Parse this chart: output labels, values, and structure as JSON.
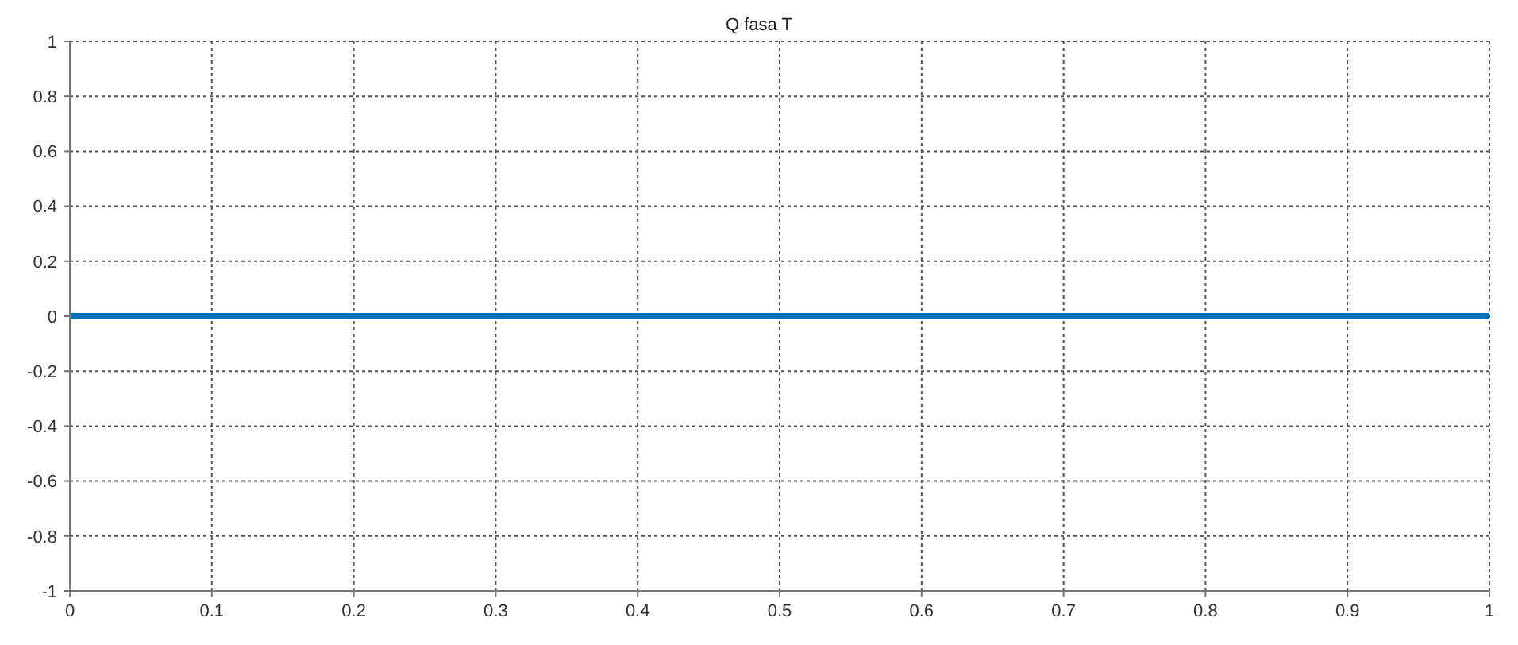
{
  "chart_data": {
    "type": "line",
    "title": "Q fasa T",
    "x": [
      0,
      1
    ],
    "series": [
      {
        "color": "#0072bd",
        "values": [
          0,
          0
        ]
      }
    ],
    "xlim": [
      0,
      1
    ],
    "xticks": [
      0,
      0.1,
      0.2,
      0.3,
      0.4,
      0.5,
      0.6,
      0.7,
      0.8,
      0.9,
      1
    ],
    "ylim": [
      -1,
      1
    ],
    "yticks": [
      -1,
      -0.8,
      -0.6,
      -0.4,
      -0.2,
      0,
      0.2,
      0.4,
      0.6,
      0.8,
      1
    ],
    "grid": true,
    "marker": "none",
    "line_style": "solid"
  }
}
